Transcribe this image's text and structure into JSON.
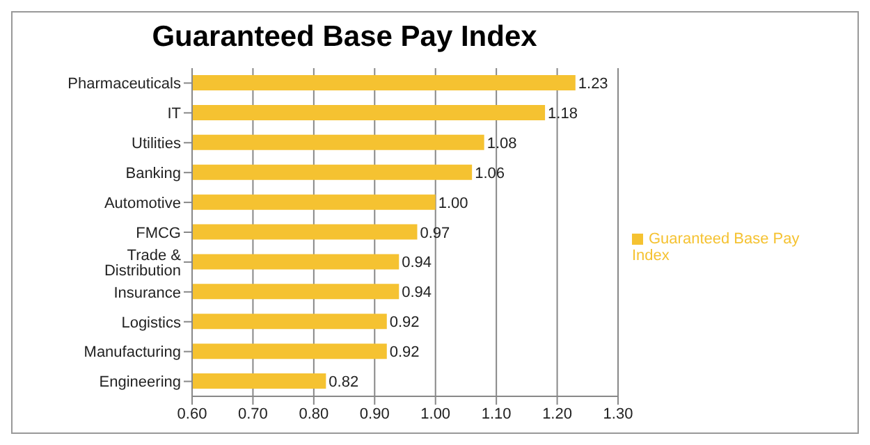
{
  "chart_data": {
    "type": "bar",
    "title": "Guaranteed Base Pay Index",
    "orientation": "horizontal",
    "categories": [
      "Pharmaceuticals",
      "IT",
      "Utilities",
      "Banking",
      "Automotive",
      "FMCG",
      "Trade & Distribution",
      "Insurance",
      "Logistics",
      "Manufacturing",
      "Engineering"
    ],
    "series": [
      {
        "name": "Guaranteed Base Pay Index",
        "color": "#f5c231",
        "values": [
          1.23,
          1.18,
          1.08,
          1.06,
          1.0,
          0.97,
          0.94,
          0.94,
          0.92,
          0.92,
          0.82
        ],
        "value_labels": [
          "1.23",
          "1.18",
          "1.08",
          "1.06",
          "1.00",
          "0.97",
          "0.94",
          "0.94",
          "0.92",
          "0.92",
          "0.82"
        ]
      }
    ],
    "xlim": [
      0.6,
      1.3
    ],
    "xticks": [
      {
        "value": 0.6,
        "label": "0.60"
      },
      {
        "value": 0.7,
        "label": "0.70"
      },
      {
        "value": 0.8,
        "label": "0.80"
      },
      {
        "value": 0.9,
        "label": "0.90"
      },
      {
        "value": 1.0,
        "label": "1.00"
      },
      {
        "value": 1.1,
        "label": "1.10"
      },
      {
        "value": 1.2,
        "label": "1.20"
      },
      {
        "value": 1.3,
        "label": "1.30"
      }
    ],
    "grid": "x",
    "legend": "right"
  }
}
